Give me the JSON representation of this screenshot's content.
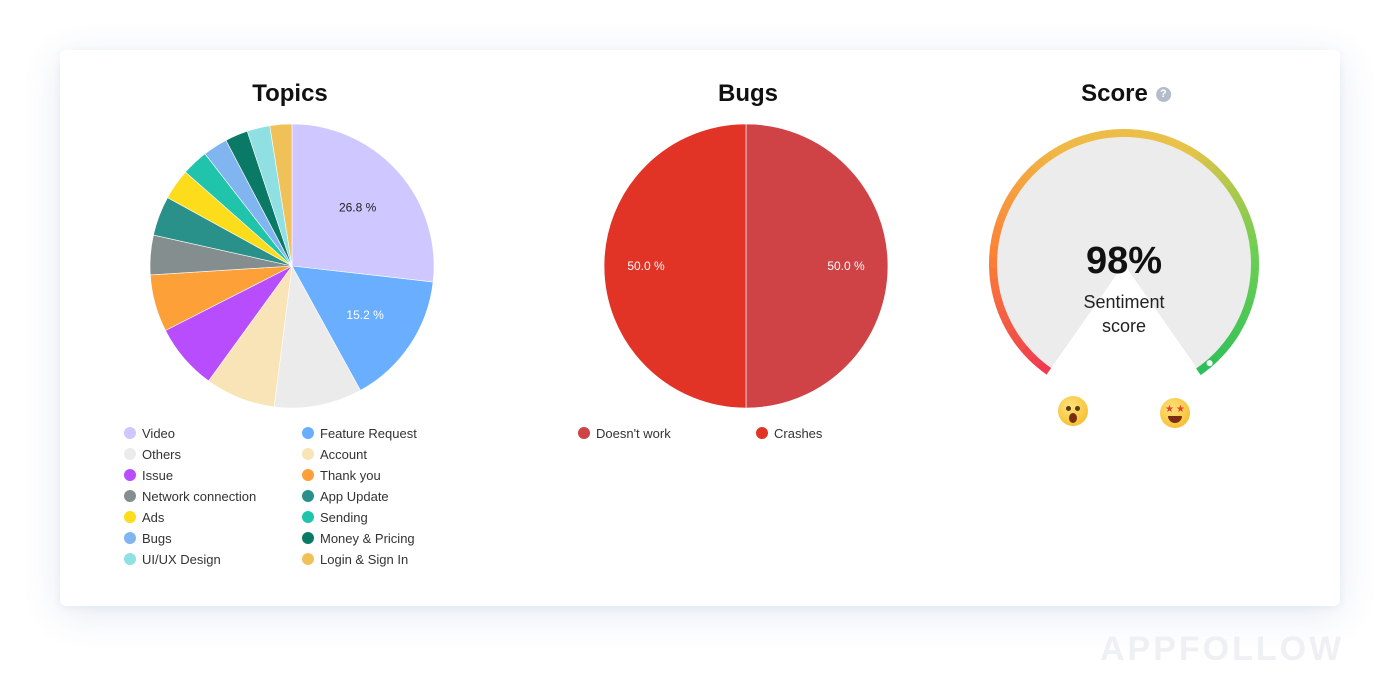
{
  "brand": {
    "watermark": "APPFOLLOW"
  },
  "chart_data": [
    {
      "type": "pie",
      "title": "Topics",
      "labels": [
        "Video",
        "Feature Request",
        "Others",
        "Account",
        "Issue",
        "Thank you",
        "Network connection",
        "App Update",
        "Ads",
        "Sending",
        "Bugs",
        "Money & Pricing",
        "UI/UX Design",
        "Login & Sign In"
      ],
      "values": [
        26.8,
        15.2,
        10.0,
        8.0,
        7.5,
        6.5,
        4.5,
        4.5,
        3.5,
        3.0,
        2.8,
        2.6,
        2.6,
        2.5
      ],
      "colors": [
        "#cfc7ff",
        "#6aaeff",
        "#ebebeb",
        "#f9e4b7",
        "#b74dfc",
        "#fda038",
        "#858e8f",
        "#29918a",
        "#fddc1b",
        "#1fc4ab",
        "#80b5f0",
        "#0a7966",
        "#8fdfe3",
        "#f0c159"
      ],
      "slice_order": [
        "Video",
        "Feature Request",
        "Others",
        "Account",
        "Issue",
        "Thank you",
        "Network connection",
        "App Update",
        "Ads",
        "Sending",
        "Bugs",
        "Money & Pricing",
        "UI/UX Design",
        "Login & Sign In"
      ],
      "data_labels": {
        "Video": "26.8 %",
        "Feature Request": "15.2 %"
      },
      "legend_position": "bottom",
      "legend_columns": 2
    },
    {
      "type": "pie",
      "title": "Bugs",
      "labels": [
        "Doesn't work",
        "Crashes"
      ],
      "values": [
        50.0,
        50.0
      ],
      "colors": [
        "#cf4346",
        "#e13326"
      ],
      "data_labels": {
        "Doesn't work": "50.0 %",
        "Crashes": "50.0 %"
      },
      "legend_position": "bottom",
      "legend_columns": 2
    },
    {
      "type": "gauge",
      "title": "Score",
      "value": 98,
      "value_label": "98%",
      "caption": "Sentiment\nscore",
      "min_emoji": "screaming-face-icon",
      "max_emoji": "star-struck-face-icon",
      "gradient_colors": [
        "#ef3b50",
        "#fb8236",
        "#efb947",
        "#e9c249",
        "#6bcf52",
        "#2fbf5a"
      ]
    }
  ]
}
